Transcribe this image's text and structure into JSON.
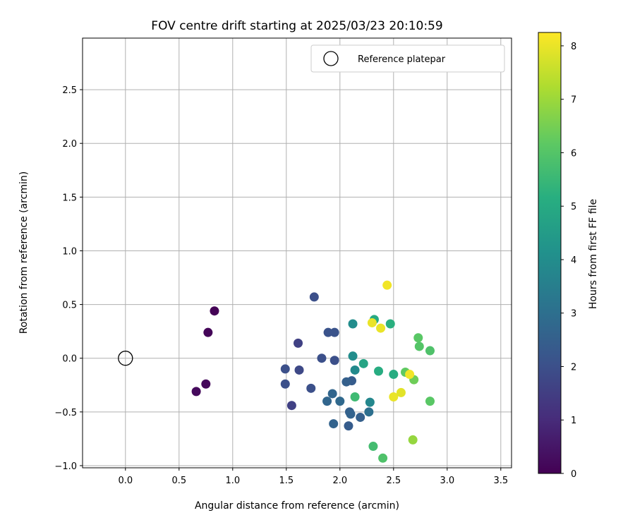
{
  "chart_data": {
    "type": "scatter",
    "title": "FOV centre drift starting at 2025/03/23 20:10:59",
    "xlabel": "Angular distance from reference (arcmin)",
    "ylabel": "Rotation from reference (arcmin)",
    "xlim": [
      -0.4,
      3.6
    ],
    "ylim": [
      -1.02,
      2.98
    ],
    "x_ticks": [
      "0.0",
      "0.5",
      "1.0",
      "1.5",
      "2.0",
      "2.5",
      "3.0",
      "3.5"
    ],
    "y_ticks": [
      "−1.0",
      "−0.5",
      "0.0",
      "0.5",
      "1.0",
      "1.5",
      "2.0",
      "2.5"
    ],
    "grid": true,
    "legend": {
      "placement": "top-right",
      "entries": [
        "Reference platepar"
      ]
    },
    "reference_point": {
      "x": 0.0,
      "y": 0.0,
      "label": "Reference platepar"
    },
    "colorbar": {
      "label": "Hours from first FF file",
      "colormap": "viridis",
      "range": [
        0,
        8.25
      ],
      "ticks": [
        "0",
        "1",
        "2",
        "3",
        "4",
        "5",
        "6",
        "7",
        "8"
      ]
    },
    "points": [
      {
        "x": 0.83,
        "y": 0.44,
        "h": 0.05
      },
      {
        "x": 0.77,
        "y": 0.24,
        "h": 0.1
      },
      {
        "x": 0.75,
        "y": -0.24,
        "h": 0.15
      },
      {
        "x": 0.66,
        "y": -0.31,
        "h": 0.2
      },
      {
        "x": 1.61,
        "y": 0.14,
        "h": 1.6
      },
      {
        "x": 1.55,
        "y": -0.44,
        "h": 1.6
      },
      {
        "x": 1.62,
        "y": -0.11,
        "h": 1.8
      },
      {
        "x": 1.49,
        "y": -0.1,
        "h": 2.0
      },
      {
        "x": 1.49,
        "y": -0.24,
        "h": 2.0
      },
      {
        "x": 1.73,
        "y": -0.28,
        "h": 2.0
      },
      {
        "x": 1.83,
        "y": 0.0,
        "h": 2.0
      },
      {
        "x": 1.76,
        "y": 0.57,
        "h": 2.0
      },
      {
        "x": 1.89,
        "y": 0.24,
        "h": 2.1
      },
      {
        "x": 1.95,
        "y": 0.24,
        "h": 2.1
      },
      {
        "x": 1.95,
        "y": -0.02,
        "h": 2.0
      },
      {
        "x": 1.88,
        "y": -0.4,
        "h": 2.7
      },
      {
        "x": 1.93,
        "y": -0.33,
        "h": 2.7
      },
      {
        "x": 2.0,
        "y": -0.4,
        "h": 2.8
      },
      {
        "x": 1.94,
        "y": -0.61,
        "h": 2.6
      },
      {
        "x": 2.09,
        "y": -0.5,
        "h": 2.5
      },
      {
        "x": 2.1,
        "y": -0.52,
        "h": 2.6
      },
      {
        "x": 2.11,
        "y": -0.21,
        "h": 2.4
      },
      {
        "x": 2.06,
        "y": -0.22,
        "h": 2.5
      },
      {
        "x": 2.08,
        "y": -0.63,
        "h": 2.4
      },
      {
        "x": 2.19,
        "y": -0.55,
        "h": 2.5
      },
      {
        "x": 2.27,
        "y": -0.5,
        "h": 3.0
      },
      {
        "x": 2.28,
        "y": -0.41,
        "h": 3.8
      },
      {
        "x": 2.12,
        "y": 0.02,
        "h": 4.0
      },
      {
        "x": 2.14,
        "y": -0.11,
        "h": 3.9
      },
      {
        "x": 2.12,
        "y": 0.32,
        "h": 4.0
      },
      {
        "x": 2.22,
        "y": -0.05,
        "h": 4.8
      },
      {
        "x": 2.14,
        "y": -0.36,
        "h": 5.6
      },
      {
        "x": 2.32,
        "y": 0.36,
        "h": 5.0
      },
      {
        "x": 2.47,
        "y": 0.32,
        "h": 5.2
      },
      {
        "x": 2.36,
        "y": -0.12,
        "h": 5.1
      },
      {
        "x": 2.5,
        "y": -0.15,
        "h": 5.1
      },
      {
        "x": 2.31,
        "y": -0.82,
        "h": 5.7
      },
      {
        "x": 2.4,
        "y": -0.93,
        "h": 5.9
      },
      {
        "x": 2.61,
        "y": -0.13,
        "h": 6.2
      },
      {
        "x": 2.73,
        "y": 0.19,
        "h": 6.1
      },
      {
        "x": 2.74,
        "y": 0.11,
        "h": 6.0
      },
      {
        "x": 2.84,
        "y": 0.07,
        "h": 5.9
      },
      {
        "x": 2.69,
        "y": -0.2,
        "h": 6.4
      },
      {
        "x": 2.84,
        "y": -0.4,
        "h": 6.1
      },
      {
        "x": 2.68,
        "y": -0.76,
        "h": 6.9
      },
      {
        "x": 2.65,
        "y": -0.15,
        "h": 8.1
      },
      {
        "x": 2.3,
        "y": 0.33,
        "h": 8.0
      },
      {
        "x": 2.38,
        "y": 0.28,
        "h": 8.0
      },
      {
        "x": 2.44,
        "y": 0.68,
        "h": 8.1
      },
      {
        "x": 2.5,
        "y": -0.36,
        "h": 8.0
      },
      {
        "x": 2.57,
        "y": -0.32,
        "h": 7.9
      }
    ]
  }
}
